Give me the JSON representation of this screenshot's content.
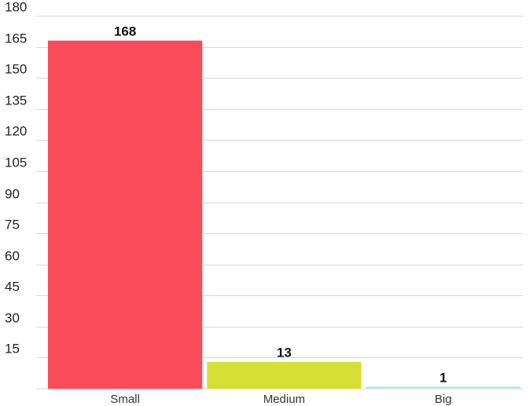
{
  "chart_data": {
    "type": "bar",
    "title": "",
    "xlabel": "",
    "ylabel": "",
    "categories": [
      "Small",
      "Medium",
      "Big"
    ],
    "values": [
      168,
      13,
      1
    ],
    "data_labels": [
      "168",
      "13",
      "1"
    ],
    "colors": [
      "#fa4b5a",
      "#d6e034",
      "#b5e3ef"
    ],
    "ylim": [
      0,
      180
    ],
    "yticks": [
      15,
      30,
      45,
      60,
      75,
      90,
      105,
      120,
      135,
      150,
      165,
      180
    ],
    "ytick_labels": [
      "15",
      "30",
      "45",
      "60",
      "75",
      "90",
      "105",
      "120",
      "135",
      "150",
      "165",
      "180"
    ],
    "grid": true,
    "legend": "none"
  }
}
